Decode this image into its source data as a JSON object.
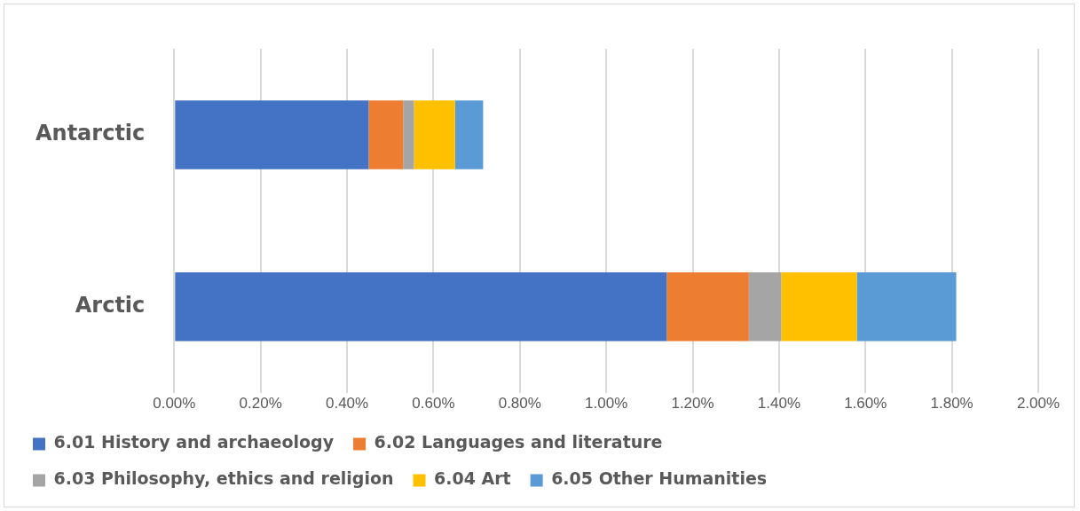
{
  "chart_data": {
    "type": "bar",
    "orientation": "horizontal",
    "stacked": true,
    "categories": [
      "Antarctic",
      "Arctic"
    ],
    "series": [
      {
        "name": "6.01 History and archaeology",
        "color": "#4472c4",
        "values": [
          0.45,
          1.14
        ]
      },
      {
        "name": "6.02 Languages and literature",
        "color": "#ed7d31",
        "values": [
          0.08,
          0.19
        ]
      },
      {
        "name": "6.03 Philosophy, ethics and religion",
        "color": "#a5a5a5",
        "values": [
          0.025,
          0.075
        ]
      },
      {
        "name": "6.04 Art",
        "color": "#ffc000",
        "values": [
          0.095,
          0.175
        ]
      },
      {
        "name": "6.05 Other Humanities",
        "color": "#5b9bd5",
        "values": [
          0.065,
          0.23
        ]
      }
    ],
    "xlim": [
      0,
      2
    ],
    "xticks": [
      {
        "value": 0,
        "label": "0.00%"
      },
      {
        "value": 0.2,
        "label": "0.20%"
      },
      {
        "value": 0.4,
        "label": "0.40%"
      },
      {
        "value": 0.6,
        "label": "0.60%"
      },
      {
        "value": 0.8,
        "label": "0.80%"
      },
      {
        "value": 1,
        "label": "1.00%"
      },
      {
        "value": 1.2,
        "label": "1.20%"
      },
      {
        "value": 1.4,
        "label": "1.40%"
      },
      {
        "value": 1.6,
        "label": "1.60%"
      },
      {
        "value": 1.8,
        "label": "1.80%"
      },
      {
        "value": 2,
        "label": "2.00%"
      }
    ],
    "grid": "x",
    "legend": "bottom"
  }
}
